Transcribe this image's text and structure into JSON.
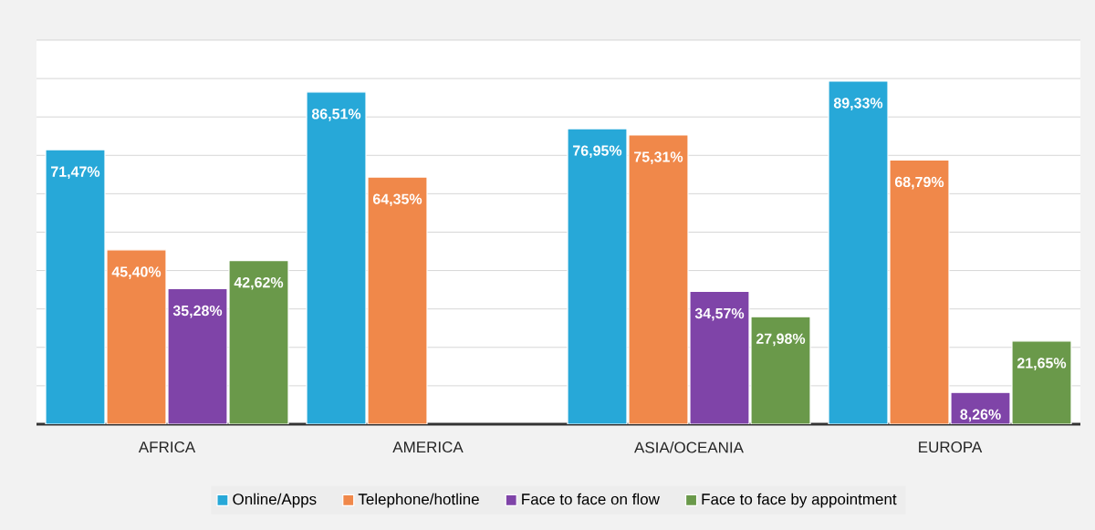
{
  "chart_data": {
    "type": "bar",
    "categories": [
      "AFRICA",
      "AMERICA",
      "ASIA/OCEANIA",
      "EUROPA"
    ],
    "series": [
      {
        "name": "Online/Apps",
        "color": "#27a8d8",
        "values": [
          71.47,
          86.51,
          76.95,
          89.33
        ],
        "value_labels": [
          "71,47%",
          "86,51%",
          "76,95%",
          "89,33%"
        ]
      },
      {
        "name": "Telephone/hotline",
        "color": "#f0884a",
        "values": [
          45.4,
          64.35,
          75.31,
          68.79
        ],
        "value_labels": [
          "45,40%",
          "64,35%",
          "75,31%",
          "68,79%"
        ]
      },
      {
        "name": "Face to face on flow",
        "color": "#7f44a8",
        "values": [
          35.28,
          null,
          34.57,
          8.26
        ],
        "value_labels": [
          "35,28%",
          null,
          "34,57%",
          "8,26%"
        ]
      },
      {
        "name": "Face to face by appointment",
        "color": "#6a994a",
        "values": [
          42.62,
          null,
          27.98,
          21.65
        ],
        "value_labels": [
          "42,62%",
          null,
          "27,98%",
          "21,65%"
        ]
      }
    ],
    "ylim": [
      0,
      100
    ],
    "yticks": [
      {
        "value": 0,
        "label": null
      },
      {
        "value": 10,
        "label": null
      },
      {
        "value": 20,
        "label": null
      },
      {
        "value": 30,
        "label": null
      },
      {
        "value": 40,
        "label": null
      },
      {
        "value": 50,
        "label": null
      },
      {
        "value": 60,
        "label": null
      },
      {
        "value": 70,
        "label": null
      },
      {
        "value": 80,
        "label": null
      },
      {
        "value": 90,
        "label": null
      },
      {
        "value": 100,
        "label": null
      }
    ],
    "tick_labels": "x",
    "grid": "y",
    "legend": "bottom"
  }
}
